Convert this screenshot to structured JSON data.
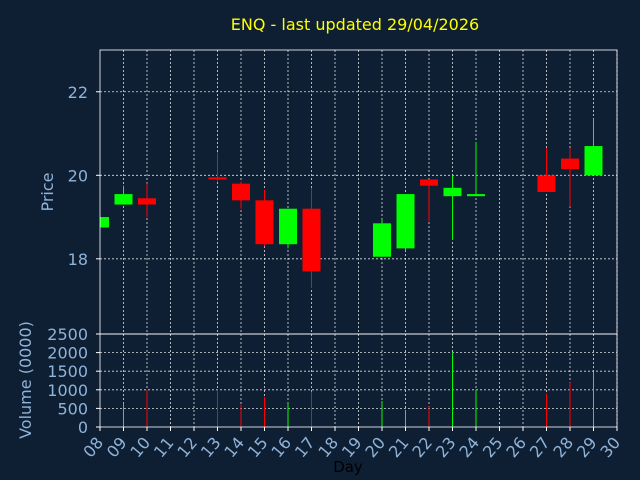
{
  "colors": {
    "background": "#0f1f33",
    "up": "#00ff00",
    "down": "#ff0000",
    "title": "#ffff00",
    "text": "#8fb3d9",
    "grid": "#ffffff"
  },
  "chart_data": [
    {
      "type": "candlestick",
      "title": "ENQ - last updated 29/04/2026",
      "ylabel": "Price",
      "ylim": [
        16.2,
        23.0
      ],
      "yticks": [
        18,
        20,
        22
      ],
      "grid": true,
      "points": [
        {
          "day": "08",
          "open": 18.75,
          "close": 19.0,
          "high": 19.0,
          "low": 18.75
        },
        {
          "day": "09",
          "open": 19.3,
          "close": 19.55,
          "high": 19.75,
          "low": 19.3
        },
        {
          "day": "10",
          "open": 19.45,
          "close": 19.3,
          "high": 19.8,
          "low": 19.0
        },
        {
          "day": "13",
          "open": 19.95,
          "close": 19.9,
          "high": 20.55,
          "low": 19.85
        },
        {
          "day": "14",
          "open": 19.8,
          "close": 19.4,
          "high": 19.85,
          "low": 19.2
        },
        {
          "day": "15",
          "open": 19.4,
          "close": 18.35,
          "high": 19.65,
          "low": 18.3
        },
        {
          "day": "16",
          "open": 18.35,
          "close": 19.2,
          "high": 19.2,
          "low": 18.25
        },
        {
          "day": "17",
          "open": 19.2,
          "close": 17.7,
          "high": 19.7,
          "low": 17.3
        },
        {
          "day": "20",
          "open": 18.05,
          "close": 18.85,
          "high": 18.95,
          "low": 18.05
        },
        {
          "day": "21",
          "open": 18.25,
          "close": 19.55,
          "high": 19.55,
          "low": 18.2
        },
        {
          "day": "22",
          "open": 19.9,
          "close": 19.75,
          "high": 19.9,
          "low": 18.9
        },
        {
          "day": "23",
          "open": 19.5,
          "close": 19.7,
          "high": 20.0,
          "low": 18.45
        },
        {
          "day": "24",
          "open": 19.5,
          "close": 19.55,
          "high": 20.8,
          "low": 19.5
        },
        {
          "day": "27",
          "open": 20.0,
          "close": 19.6,
          "high": 20.65,
          "low": 19.6
        },
        {
          "day": "28",
          "open": 20.4,
          "close": 20.15,
          "high": 20.65,
          "low": 19.25
        },
        {
          "day": "29",
          "open": 20.0,
          "close": 20.7,
          "high": 21.35,
          "low": 20.0
        }
      ]
    },
    {
      "type": "bar",
      "ylabel": "Volume (0000)",
      "xlabel": "Day",
      "ylim": [
        0,
        2500
      ],
      "yticks": [
        0,
        500,
        1000,
        1500,
        2000,
        2500
      ],
      "grid": true,
      "categories": [
        "08",
        "09",
        "10",
        "11",
        "12",
        "13",
        "14",
        "15",
        "16",
        "17",
        "18",
        "19",
        "20",
        "21",
        "22",
        "23",
        "24",
        "25",
        "26",
        "27",
        "28",
        "29",
        "30"
      ],
      "bars": [
        {
          "day": "09",
          "value": 650,
          "direction": "up"
        },
        {
          "day": "10",
          "value": 1000,
          "direction": "down"
        },
        {
          "day": "13",
          "value": 1000,
          "direction": "down"
        },
        {
          "day": "14",
          "value": 600,
          "direction": "down"
        },
        {
          "day": "15",
          "value": 800,
          "direction": "down"
        },
        {
          "day": "16",
          "value": 650,
          "direction": "up"
        },
        {
          "day": "17",
          "value": 950,
          "direction": "down"
        },
        {
          "day": "20",
          "value": 700,
          "direction": "up"
        },
        {
          "day": "21",
          "value": 450,
          "direction": "up"
        },
        {
          "day": "22",
          "value": 550,
          "direction": "down"
        },
        {
          "day": "23",
          "value": 2000,
          "direction": "up"
        },
        {
          "day": "24",
          "value": 1000,
          "direction": "up"
        },
        {
          "day": "27",
          "value": 900,
          "direction": "down"
        },
        {
          "day": "28",
          "value": 1200,
          "direction": "down"
        },
        {
          "day": "29",
          "value": 1500,
          "direction": "up"
        }
      ]
    }
  ]
}
